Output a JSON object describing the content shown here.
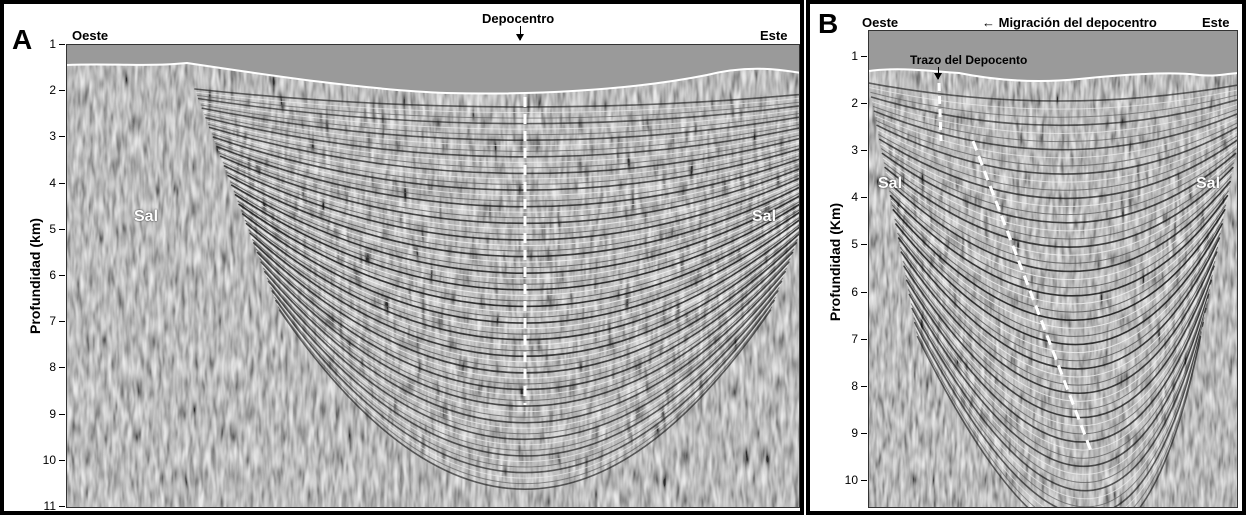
{
  "panel_a": {
    "letter": "A",
    "west_label": "Oeste",
    "east_label": "Este",
    "depocenter_label": "Depocentro",
    "ylabel": "Profundidad (km)",
    "y_ticks": [
      "1",
      "2",
      "3",
      "4",
      "5",
      "6",
      "7",
      "8",
      "9",
      "10",
      "11"
    ],
    "salt_left": "Sal",
    "salt_right": "Sal"
  },
  "panel_b": {
    "letter": "B",
    "west_label": "Oeste",
    "east_label": "Este",
    "migration_label": "← Migración del depocentro",
    "trace_label": "Trazo del Depocento",
    "ylabel": "Profundidad (Km)",
    "y_ticks": [
      "1",
      "2",
      "3",
      "4",
      "5",
      "6",
      "7",
      "8",
      "9",
      "10"
    ],
    "salt_left": "Sal",
    "salt_right": "Sal"
  },
  "colors": {
    "background_gray": "#9a9a9a",
    "frame": "#000000",
    "dashed_line": "#ffffff"
  }
}
